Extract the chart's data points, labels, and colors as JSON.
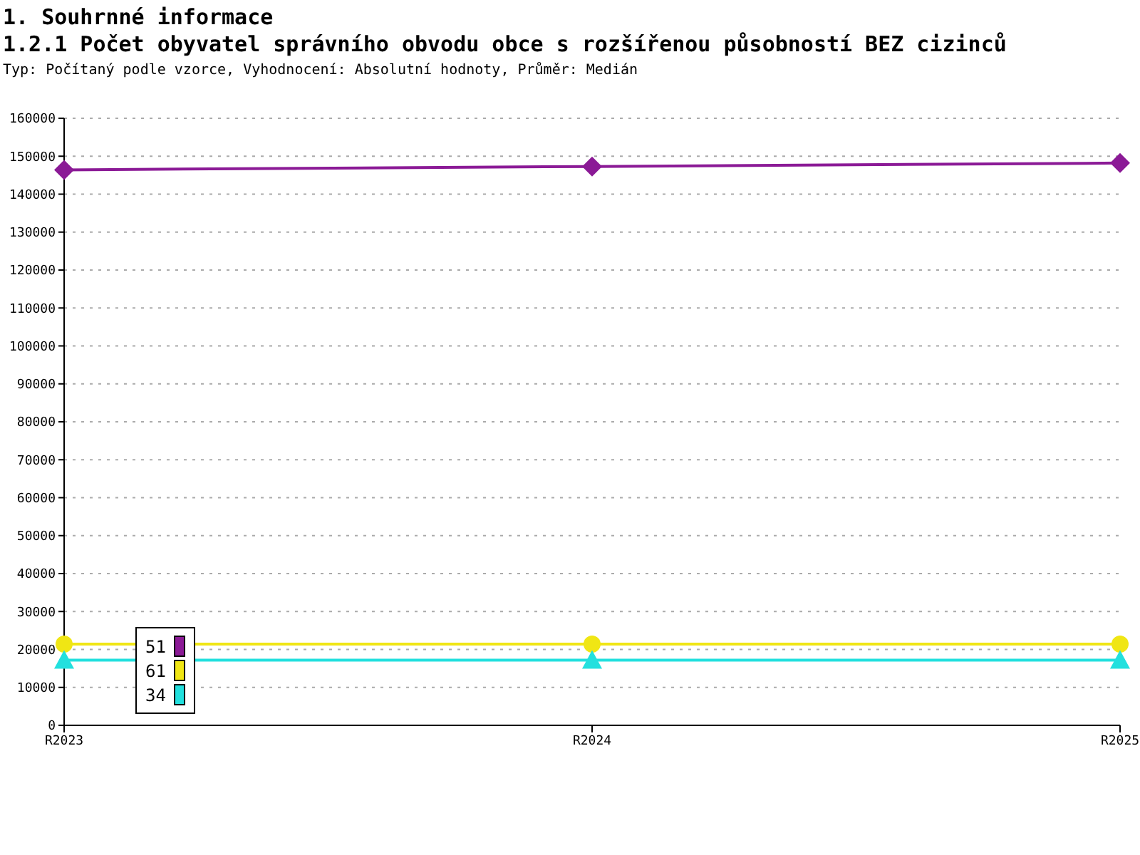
{
  "chart_data": {
    "type": "line",
    "title": "1. Souhrnné informace",
    "subtitle": "1.2.1 Počet obyvatel správního obvodu obce s rozšířenou působností BEZ cizinců",
    "annotations": [
      "Typ: Počítaný podle vzorce, Vyhodnocení: Absolutní hodnoty, Průměr: Medián"
    ],
    "categories": [
      "R2023",
      "R2024",
      "R2025"
    ],
    "series": [
      {
        "name": "51",
        "color": "#8b1a96",
        "marker": "diamond",
        "values": [
          146400,
          147300,
          148200
        ]
      },
      {
        "name": "61",
        "color": "#f0e614",
        "marker": "circle",
        "values": [
          21400,
          21400,
          21400
        ]
      },
      {
        "name": "34",
        "color": "#22e0de",
        "marker": "triangle",
        "values": [
          17200,
          17200,
          17200
        ]
      }
    ],
    "ylim": [
      0,
      160000
    ],
    "yticks": [
      0,
      10000,
      20000,
      30000,
      40000,
      50000,
      60000,
      70000,
      80000,
      90000,
      100000,
      110000,
      120000,
      130000,
      140000,
      150000,
      160000
    ],
    "grid": "y",
    "legend": "bottom left",
    "line_style": "solid"
  }
}
